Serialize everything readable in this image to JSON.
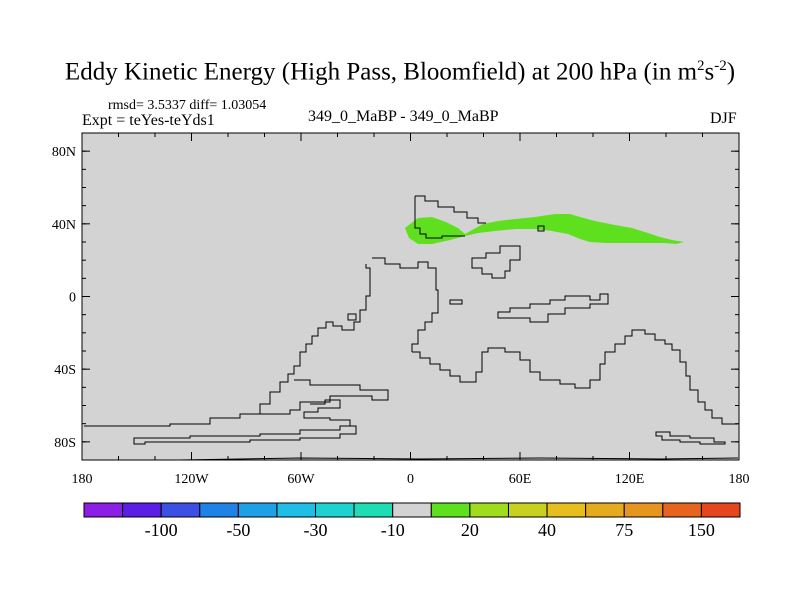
{
  "title": {
    "main": "Eddy Kinetic Energy (High Pass, Bloomfield) at 200 hPa (in m",
    "sup1": "2",
    "mid": "s",
    "sup2": "-2",
    "end": ")"
  },
  "stats": "rmsd= 3.5337 diff= 1.03054",
  "expt": "Expt = teYes-teYds1",
  "center_label": "349_0_MaBP - 349_0_MaBP",
  "season": "DJF",
  "map": {
    "background_color": "#d3d3d3",
    "positive_color": "#5fe01e",
    "lon_range": [
      -180,
      180
    ],
    "lat_range": [
      -90,
      90
    ],
    "lat_ticks": [
      {
        "value": 80,
        "label": "80N"
      },
      {
        "value": 40,
        "label": "40N"
      },
      {
        "value": 0,
        "label": "0"
      },
      {
        "value": -40,
        "label": "40S"
      },
      {
        "value": -80,
        "label": "80S"
      }
    ],
    "lon_ticks": [
      {
        "value": -180,
        "label": "180"
      },
      {
        "value": -120,
        "label": "120W"
      },
      {
        "value": -60,
        "label": "60W"
      },
      {
        "value": 0,
        "label": "0"
      },
      {
        "value": 60,
        "label": "60E"
      },
      {
        "value": 120,
        "label": "120E"
      },
      {
        "value": 180,
        "label": "180"
      }
    ]
  },
  "colorbar": {
    "colors": [
      "#8c1ee6",
      "#5a1ee6",
      "#3c50e6",
      "#1e82e6",
      "#1ea0e6",
      "#1ebee6",
      "#1ed2d2",
      "#1edcb4",
      "#d3d3d3",
      "#5fe01e",
      "#a0dc1e",
      "#c8d21e",
      "#e6be1e",
      "#e6aa1e",
      "#e6961e",
      "#e6641e",
      "#e6461e"
    ],
    "labels": [
      {
        "boundary": 2,
        "text": "-100"
      },
      {
        "boundary": 4,
        "text": "-50"
      },
      {
        "boundary": 6,
        "text": "-30"
      },
      {
        "boundary": 8,
        "text": "-10"
      },
      {
        "boundary": 10,
        "text": "20"
      },
      {
        "boundary": 12,
        "text": "40"
      },
      {
        "boundary": 14,
        "text": "75"
      },
      {
        "boundary": 16,
        "text": "150"
      }
    ]
  }
}
